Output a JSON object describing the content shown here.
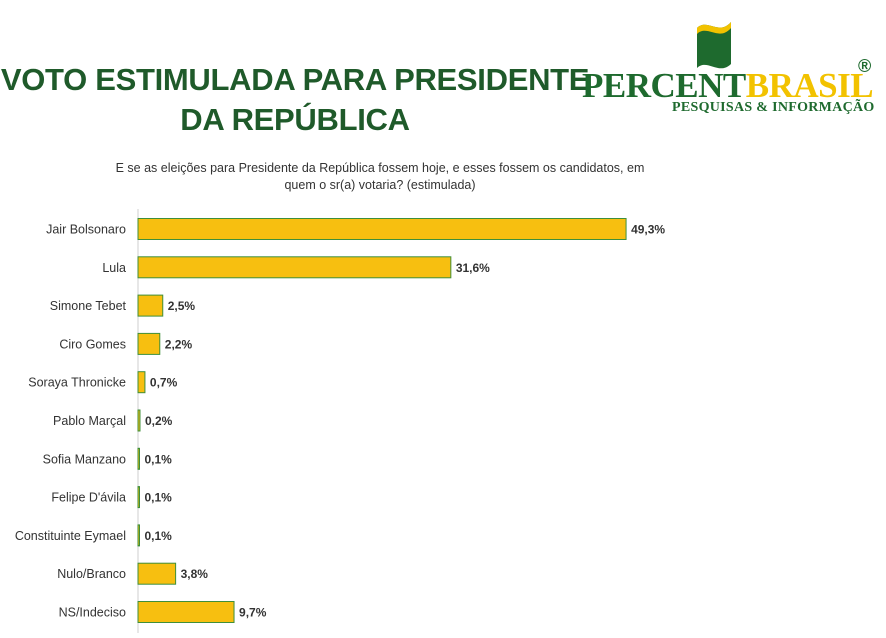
{
  "header": {
    "title_line1": "VOTO ESTIMULADA PARA PRESIDENTE",
    "title_line2": "DA REPÚBLICA"
  },
  "logo": {
    "word_part1": "PERCENT",
    "word_part2": "BRASIL",
    "registered": "®",
    "tagline": "PESQUISAS & INFORMAÇÃO",
    "colors": {
      "green": "#1e6a2e",
      "yellow": "#f2c200"
    }
  },
  "question": {
    "line1": "E se as eleições para Presidente da República fossem hoje, e esses fossem os candidatos, em",
    "line2": "quem o sr(a) votaria?  (estimulada)"
  },
  "chart_data": {
    "type": "bar",
    "orientation": "horizontal",
    "categories": [
      "Jair Bolsonaro",
      "Lula",
      "Simone Tebet",
      "Ciro Gomes",
      "Soraya Thronicke",
      "Pablo Marçal",
      "Sofia Manzano",
      "Felipe D'ávila",
      "Constituinte Eymael",
      "Nulo/Branco",
      "NS/Indeciso"
    ],
    "values": [
      49.3,
      31.6,
      2.5,
      2.2,
      0.7,
      0.2,
      0.1,
      0.1,
      0.1,
      3.8,
      9.7
    ],
    "value_labels": [
      "49,3%",
      "31,6%",
      "2,5%",
      "2,2%",
      "0,7%",
      "0,2%",
      "0,1%",
      "0,1%",
      "0,1%",
      "3,8%",
      "9,7%"
    ],
    "xlim": [
      0,
      50
    ],
    "grid": false,
    "bar_color": "#f7bf10",
    "bar_border_color": "#3f8f3a"
  }
}
